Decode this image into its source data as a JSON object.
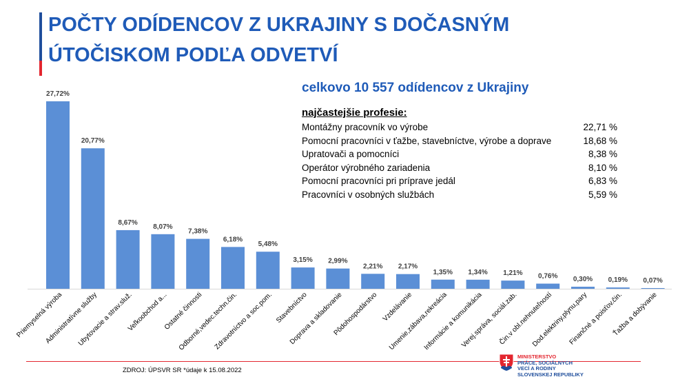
{
  "title": {
    "line1": "POČTY ODÍDENCOV Z UKRAJINY S DOČASNÝM",
    "line2": "ÚTOČISKOM PODĽA ODVETVÍ"
  },
  "summary": {
    "total": "celkovo 10 557 odídencov z Ukrajiny",
    "heading": "najčastejšie profesie:",
    "professions": [
      {
        "name": "Montážny pracovník vo výrobe",
        "pct": "22,71 %"
      },
      {
        "name": "Pomocní pracovníci v ťažbe, stavebníctve, výrobe a doprave",
        "pct": "18,68 %"
      },
      {
        "name": "Upratovači a pomocníci",
        "pct": "8,38 %"
      },
      {
        "name": "Operátor výrobného zariadenia",
        "pct": "8,10 %"
      },
      {
        "name": "Pomocní pracovníci pri príprave jedál",
        "pct": "6,83 %"
      },
      {
        "name": "Pracovníci v osobných službách",
        "pct": "5,59 %"
      }
    ]
  },
  "chart_data": {
    "type": "bar",
    "title": "",
    "xlabel": "",
    "ylabel": "",
    "ylim": [
      0,
      28
    ],
    "categories": [
      "Priemyselná výroba",
      "Administratívne služby",
      "Ubytovacie a strav.služ.",
      "Veľkoobchod a...",
      "Ostatné činnosti",
      "Odborné,vedec.techn.čin.",
      "Zdravotníctvo a soc.pom.",
      "Stavebníctvo",
      "Doprava a skladovanie",
      "Pôdohospodárstvo",
      "Vzdelávanie",
      "Umenie,zábava,rekreácia",
      "Informácie a komunikácia",
      "Verej.správa, sociál.zab.",
      "Čin.v obl.nehnuteľností",
      "Dod.elektriny,plynu,pary",
      "Finančné a poisťov.čin.",
      "Ťažba a dobývanie"
    ],
    "values": [
      27.72,
      20.77,
      8.67,
      8.07,
      7.38,
      6.18,
      5.48,
      3.15,
      2.99,
      2.21,
      2.17,
      1.35,
      1.34,
      1.21,
      0.76,
      0.3,
      0.19,
      0.07
    ],
    "value_labels": [
      "27,72%",
      "20,77%",
      "8,67%",
      "8,07%",
      "7,38%",
      "6,18%",
      "5,48%",
      "3,15%",
      "2,99%",
      "2,21%",
      "2,17%",
      "1,35%",
      "1,34%",
      "1,21%",
      "0,76%",
      "0,30%",
      "0,19%",
      "0,07%"
    ],
    "bar_color": "#5b8fd6"
  },
  "footer": {
    "source": "ZDROJ: ÚPSVR SR *údaje k 15.08.2022",
    "ministry_lines": [
      "MINISTERSTVO",
      "PRÁCE, SOCIÁLNYCH",
      "VECÍ A RODINY",
      "SLOVENSKEJ REPUBLIKY"
    ]
  }
}
